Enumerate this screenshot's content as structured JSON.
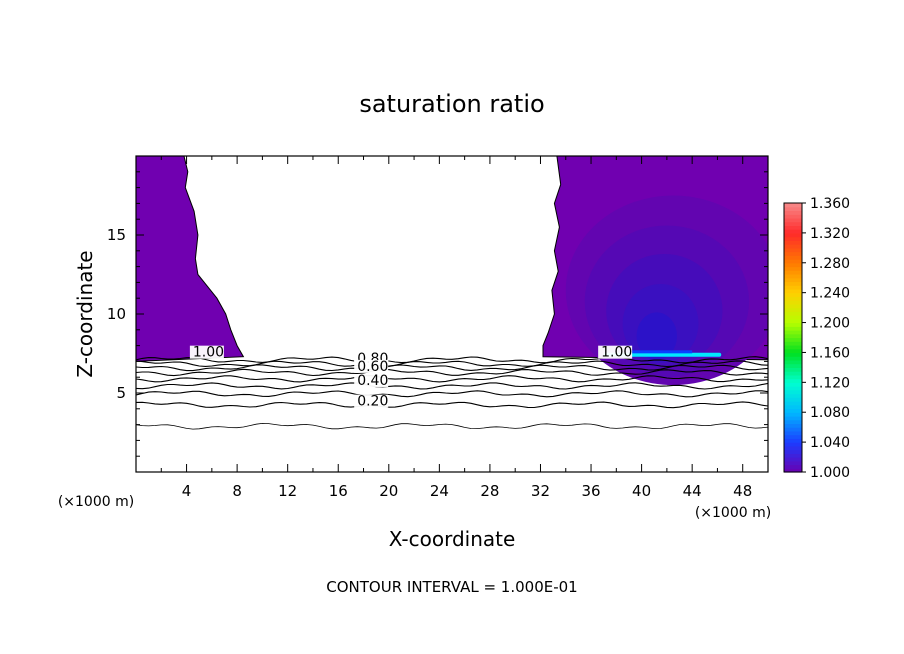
{
  "chart_data": {
    "type": "contour",
    "title": "saturation ratio",
    "xlabel": "X-coordinate",
    "ylabel": "Z-coordinate",
    "x_unit_left": "(×1000 m)",
    "x_unit_right": "(×1000 m)",
    "xlim": [
      0,
      50
    ],
    "ylim": [
      0,
      20
    ],
    "x_ticks": [
      4,
      8,
      12,
      16,
      20,
      24,
      28,
      32,
      36,
      40,
      44,
      48
    ],
    "y_ticks": [
      5,
      10,
      15
    ],
    "x_tick_labels": [
      "4",
      "8",
      "12",
      "16",
      "20",
      "24",
      "28",
      "32",
      "36",
      "40",
      "44",
      "48"
    ],
    "y_tick_labels": [
      "5",
      "10",
      "15"
    ],
    "footer": "CONTOUR INTERVAL = 1.000E-01",
    "contour_interval": 0.1,
    "colorbar": {
      "min": 1.0,
      "max": 1.36,
      "labels": [
        "1.360",
        "1.320",
        "1.280",
        "1.240",
        "1.200",
        "1.160",
        "1.120",
        "1.080",
        "1.040",
        "1.000"
      ],
      "colors": [
        "#f88a8a",
        "#ff2a2a",
        "#ff7a00",
        "#ffd000",
        "#b5ff00",
        "#00e020",
        "#00ffd0",
        "#00b8ff",
        "#1c3cff",
        "#6a00b0"
      ]
    },
    "contour_labels": [
      {
        "text": "1.00",
        "x": 4.5,
        "y": 7.3
      },
      {
        "text": "0.80",
        "x": 17.5,
        "y": 6.9
      },
      {
        "text": "0.60",
        "x": 17.5,
        "y": 6.4
      },
      {
        "text": "0.40",
        "x": 17.5,
        "y": 5.5
      },
      {
        "text": "0.20",
        "x": 17.5,
        "y": 4.2
      },
      {
        "text": "1.00",
        "x": 36.8,
        "y": 7.3
      }
    ],
    "supersaturated_regions": [
      {
        "name": "left",
        "boundary": [
          [
            0,
            20
          ],
          [
            3.8,
            20
          ],
          [
            4.1,
            19
          ],
          [
            3.9,
            18
          ],
          [
            4.6,
            16.5
          ],
          [
            4.9,
            15
          ],
          [
            4.7,
            13.5
          ],
          [
            4.9,
            12.5
          ],
          [
            5.6,
            11.8
          ],
          [
            6.4,
            11
          ],
          [
            7.1,
            10
          ],
          [
            7.5,
            9
          ],
          [
            8.0,
            8
          ],
          [
            8.5,
            7.3
          ],
          [
            0,
            7.0
          ]
        ]
      },
      {
        "name": "right",
        "boundary": [
          [
            33.3,
            20
          ],
          [
            50,
            20
          ],
          [
            50,
            7.1
          ],
          [
            32.2,
            7.3
          ],
          [
            32.2,
            8.0
          ],
          [
            32.6,
            8.8
          ],
          [
            33.1,
            10
          ],
          [
            32.9,
            11.5
          ],
          [
            33.4,
            12.7
          ],
          [
            33.1,
            14
          ],
          [
            33.5,
            15.5
          ],
          [
            33.1,
            17
          ],
          [
            33.6,
            18.2
          ],
          [
            33.3,
            20
          ]
        ]
      }
    ],
    "contour_lines": [
      {
        "level": 1.0,
        "z": 7.1
      },
      {
        "level": 0.9,
        "z": 6.85
      },
      {
        "level": 0.8,
        "z": 6.6
      },
      {
        "level": 0.7,
        "z": 6.3
      },
      {
        "level": 0.6,
        "z": 5.9
      },
      {
        "level": 0.5,
        "z": 5.45
      },
      {
        "level": 0.4,
        "z": 4.95
      },
      {
        "level": 0.3,
        "z": 4.25
      },
      {
        "level": 0.2,
        "z": 2.9
      }
    ]
  }
}
